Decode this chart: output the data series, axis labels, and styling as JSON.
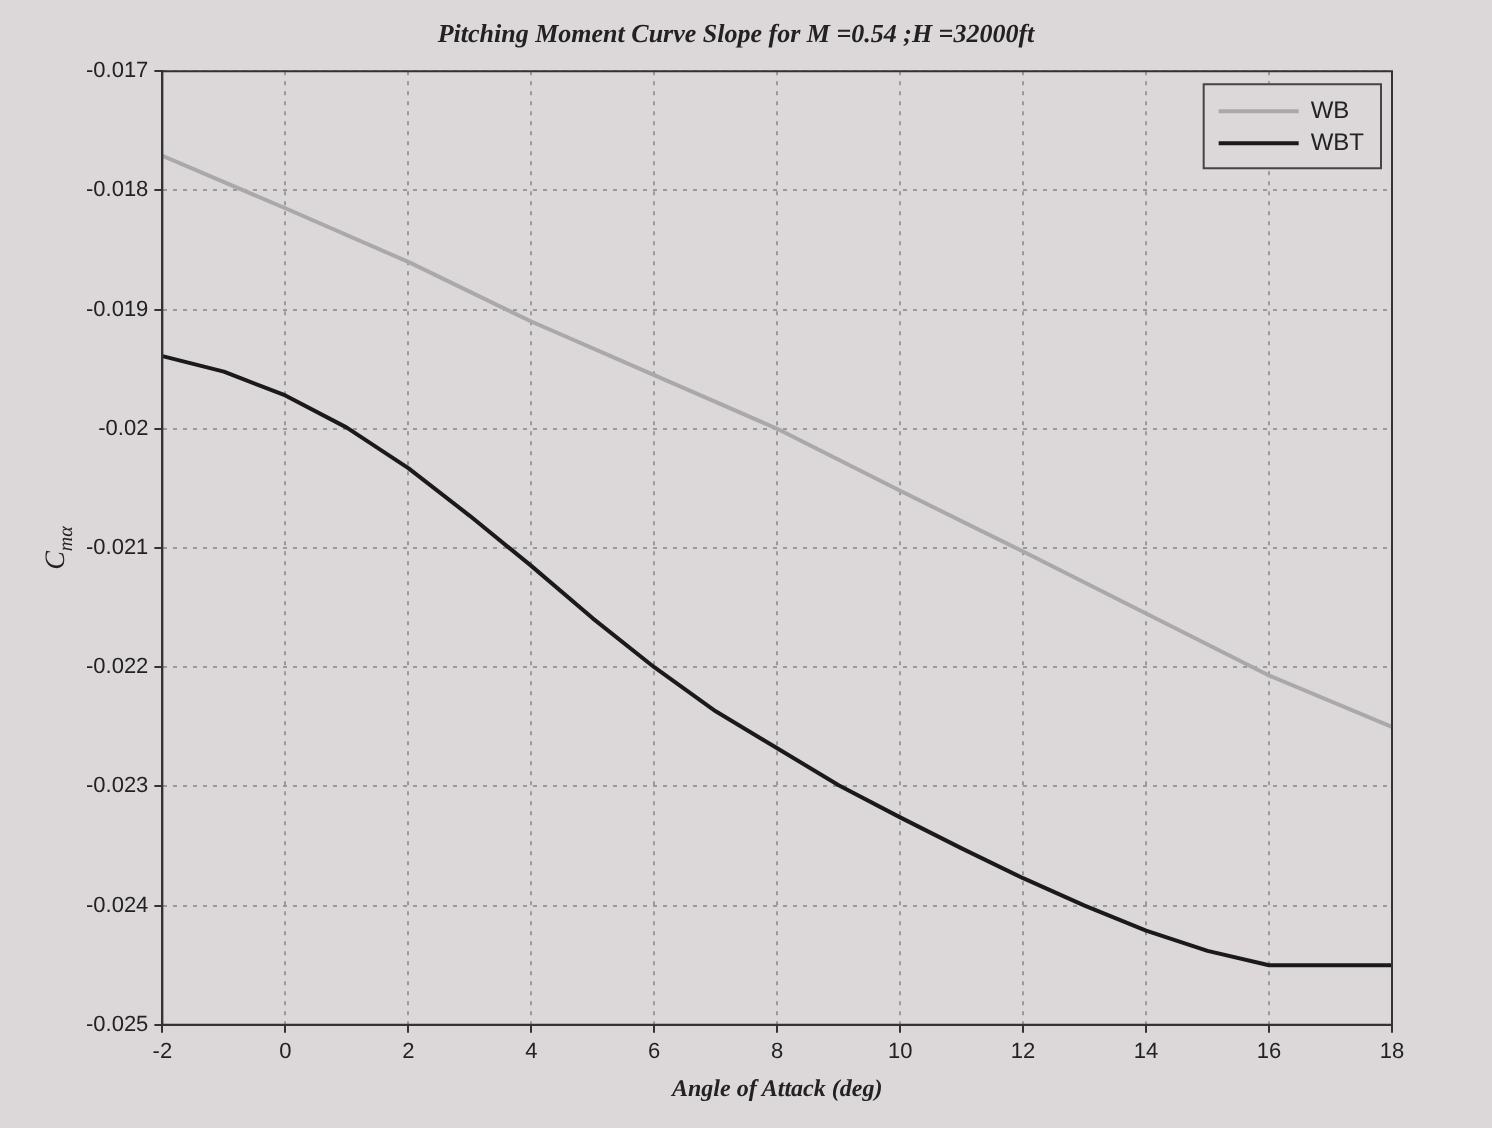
{
  "chart_data": {
    "type": "line",
    "title": "Pitching Moment Curve Slope for M =0.54 ;H =32000ft",
    "xlabel": "Angle of Attack (deg)",
    "ylabel": "C$_{mα}$",
    "series": [
      {
        "name": "WB",
        "color": "#a9a9a9",
        "x": [
          -2,
          0,
          2,
          4,
          6,
          8,
          10,
          12,
          14,
          16,
          18
        ],
        "values": [
          -0.01771,
          -0.01815,
          -0.0186,
          -0.0191,
          -0.01955,
          -0.02,
          -0.02052,
          -0.02103,
          -0.02155,
          -0.02207,
          -0.0225
        ]
      },
      {
        "name": "WBT",
        "color": "#1a1a1a",
        "x": [
          -2,
          -1,
          0,
          1,
          2,
          3,
          4,
          5,
          6,
          7,
          8,
          9,
          10,
          11,
          12,
          13,
          14,
          15,
          16,
          17,
          18
        ],
        "values": [
          -0.01939,
          -0.01952,
          -0.01972,
          -0.01999,
          -0.02033,
          -0.02073,
          -0.02115,
          -0.02159,
          -0.022,
          -0.02237,
          -0.02268,
          -0.02299,
          -0.02326,
          -0.02352,
          -0.02377,
          -0.024,
          -0.02421,
          -0.02438,
          -0.0245,
          -0.0245,
          -0.0245
        ]
      }
    ],
    "xlim": [
      -2,
      18
    ],
    "xticks": [
      -2,
      0,
      2,
      4,
      6,
      8,
      10,
      12,
      14,
      16,
      18
    ],
    "ylim": [
      -0.025,
      -0.017
    ],
    "yticks": [
      -0.025,
      -0.024,
      -0.023,
      -0.022,
      -0.021,
      {
        "value": -0.02,
        "label": "-0.02"
      },
      -0.019,
      -0.018,
      -0.017
    ],
    "grid": true,
    "legend": "top right",
    "marker": "none",
    "line_style": "solid"
  }
}
